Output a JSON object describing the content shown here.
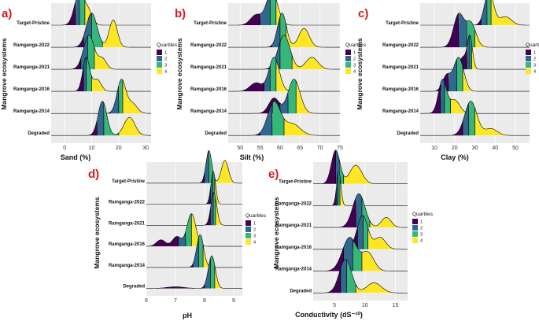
{
  "figure": {
    "y_axis_title": "Mangrove ecosystems",
    "legend_title": "Quartiles",
    "quartile_labels": [
      "1",
      "2",
      "3",
      "4"
    ],
    "quartile_colors": [
      "#440154",
      "#31688e",
      "#35b779",
      "#fde725"
    ],
    "panel_background": "#ebebeb",
    "gridline_color": "#ffffff",
    "panel_letter_color": "#d7191c"
  },
  "chart_data": [
    {
      "panel": "a)",
      "type": "ridgeline",
      "xlabel": "Sand (%)",
      "ylabel": "Mangrove ecosystems",
      "xlim": [
        -5,
        32
      ],
      "x_ticks": [
        0,
        10,
        20,
        30
      ],
      "categories": [
        "Target-Pristine",
        "Ramganga-2022",
        "Ramganga-2021",
        "Ramganga-2016",
        "Ramganga-2014",
        "Degraded"
      ],
      "series": [
        {
          "name": "Target-Pristine",
          "quartiles": [
            4,
            5.5,
            7.5,
            12
          ],
          "peaks": [
            {
              "x": 5.5,
              "h": 1.0,
              "s": 1.8
            },
            {
              "x": 9,
              "h": 0.35,
              "s": 1.5
            }
          ]
        },
        {
          "name": "Ramganga-2022",
          "quartiles": [
            7,
            10,
            14,
            18
          ],
          "peaks": [
            {
              "x": 10,
              "h": 0.75,
              "s": 2.0
            },
            {
              "x": 18,
              "h": 0.6,
              "s": 1.5
            }
          ]
        },
        {
          "name": "Ramganga-2021",
          "quartiles": [
            6,
            8.5,
            11,
            16
          ],
          "peaks": [
            {
              "x": 9,
              "h": 1.0,
              "s": 2.0
            },
            {
              "x": 14,
              "h": 0.3,
              "s": 1.5
            }
          ]
        },
        {
          "name": "Ramganga-2016",
          "quartiles": [
            7,
            8,
            10,
            13
          ],
          "peaks": [
            {
              "x": 8,
              "h": 1.0,
              "s": 1.3
            },
            {
              "x": 12,
              "h": 0.35,
              "s": 1.5
            }
          ]
        },
        {
          "name": "Ramganga-2014",
          "quartiles": [
            17,
            20,
            21.5,
            24
          ],
          "peaks": [
            {
              "x": 21,
              "h": 1.0,
              "s": 1.6
            },
            {
              "x": 25,
              "h": 0.3,
              "s": 1.8
            }
          ]
        },
        {
          "name": "Degraded",
          "quartiles": [
            12,
            14.5,
            20,
            24
          ],
          "peaks": [
            {
              "x": 14,
              "h": 0.85,
              "s": 1.6
            },
            {
              "x": 24,
              "h": 0.45,
              "s": 2.0
            }
          ]
        }
      ]
    },
    {
      "panel": "b)",
      "type": "ridgeline",
      "xlabel": "Silt (%)",
      "ylabel": "Mangrove ecosystems",
      "xlim": [
        47,
        75
      ],
      "x_ticks": [
        50,
        55,
        60,
        65,
        70,
        75
      ],
      "categories": [
        "Target-Pristine",
        "Ramganga-2022",
        "Ramganga-2021",
        "Ramganga-2016",
        "Ramganga-2014",
        "Degraded"
      ],
      "series": [
        {
          "name": "Target-Pristine",
          "quartiles": [
            55,
            57.5,
            59,
            61
          ],
          "peaks": [
            {
              "x": 58,
              "h": 1.0,
              "s": 1.4
            },
            {
              "x": 54,
              "h": 0.3,
              "s": 1.4
            }
          ]
        },
        {
          "name": "Ramganga-2022",
          "quartiles": [
            58,
            60,
            61.5,
            64
          ],
          "peaks": [
            {
              "x": 60.5,
              "h": 1.0,
              "s": 1.1
            },
            {
              "x": 66,
              "h": 0.55,
              "s": 1.3
            }
          ]
        },
        {
          "name": "Ramganga-2021",
          "quartiles": [
            57,
            60,
            63,
            66
          ],
          "peaks": [
            {
              "x": 61,
              "h": 1.0,
              "s": 1.5
            },
            {
              "x": 68,
              "h": 0.35,
              "s": 1.5
            }
          ]
        },
        {
          "name": "Ramganga-2016",
          "quartiles": [
            56,
            57.5,
            59,
            61
          ],
          "peaks": [
            {
              "x": 58.5,
              "h": 1.0,
              "s": 1.3
            },
            {
              "x": 54,
              "h": 0.25,
              "s": 1.5
            }
          ]
        },
        {
          "name": "Ramganga-2014",
          "quartiles": [
            60,
            62,
            64,
            66
          ],
          "peaks": [
            {
              "x": 63.5,
              "h": 1.0,
              "s": 1.5
            },
            {
              "x": 58.5,
              "h": 0.45,
              "s": 1.3
            }
          ]
        },
        {
          "name": "Degraded",
          "quartiles": [
            55,
            58,
            61,
            65
          ],
          "peaks": [
            {
              "x": 58.5,
              "h": 0.85,
              "s": 1.6
            },
            {
              "x": 63,
              "h": 0.3,
              "s": 2.0
            }
          ]
        }
      ]
    },
    {
      "panel": "c)",
      "type": "ridgeline",
      "xlabel": "Clay (%)",
      "ylabel": "Mangrove ecosystems",
      "xlim": [
        3,
        57
      ],
      "x_ticks": [
        10,
        20,
        30,
        40,
        50
      ],
      "categories": [
        "Target-Pristine",
        "Ramganga-2022",
        "Ramganga-2021",
        "Ramganga-2016",
        "Ramganga-2014",
        "Degraded"
      ],
      "series": [
        {
          "name": "Target-Pristine",
          "quartiles": [
            33,
            36,
            38,
            43
          ],
          "peaks": [
            {
              "x": 37,
              "h": 1.0,
              "s": 2.2
            },
            {
              "x": 45,
              "h": 0.25,
              "s": 3.0
            }
          ]
        },
        {
          "name": "Ramganga-2022",
          "quartiles": [
            22,
            26,
            30,
            38
          ],
          "peaks": [
            {
              "x": 22,
              "h": 0.75,
              "s": 2.5
            },
            {
              "x": 28,
              "h": 0.55,
              "s": 2.5
            }
          ]
        },
        {
          "name": "Ramganga-2021",
          "quartiles": [
            26,
            27.5,
            28.5,
            31
          ],
          "peaks": [
            {
              "x": 27.5,
              "h": 1.0,
              "s": 1.3
            },
            {
              "x": 24,
              "h": 0.35,
              "s": 1.5
            }
          ]
        },
        {
          "name": "Ramganga-2016",
          "quartiles": [
            17,
            21,
            24,
            30
          ],
          "peaks": [
            {
              "x": 22,
              "h": 1.0,
              "s": 2.5
            },
            {
              "x": 16,
              "h": 0.45,
              "s": 2.0
            }
          ]
        },
        {
          "name": "Ramganga-2014",
          "quartiles": [
            13,
            15,
            18,
            24
          ],
          "peaks": [
            {
              "x": 14,
              "h": 1.0,
              "s": 2.0
            },
            {
              "x": 20,
              "h": 0.4,
              "s": 2.5
            }
          ]
        },
        {
          "name": "Degraded",
          "quartiles": [
            24,
            27,
            30,
            34
          ],
          "peaks": [
            {
              "x": 28,
              "h": 1.0,
              "s": 3.0
            },
            {
              "x": 38,
              "h": 0.2,
              "s": 3.0
            }
          ]
        }
      ]
    },
    {
      "panel": "d)",
      "type": "ridgeline",
      "xlabel": "pH",
      "ylabel": "Mangrove ecosystems",
      "xlim": [
        6,
        9.3
      ],
      "x_ticks": [
        6,
        7,
        8,
        9
      ],
      "categories": [
        "Target-Pristine",
        "Ramganga-2022",
        "Ramganga-2021",
        "Ramganga-2016",
        "Ramganga-2014",
        "Degraded"
      ],
      "series": [
        {
          "name": "Target-Pristine",
          "quartiles": [
            8.0,
            8.15,
            8.3,
            8.55
          ],
          "peaks": [
            {
              "x": 8.15,
              "h": 1.0,
              "s": 0.1
            },
            {
              "x": 8.7,
              "h": 0.7,
              "s": 0.12
            }
          ]
        },
        {
          "name": "Ramganga-2022",
          "quartiles": [
            8.2,
            8.28,
            8.35,
            8.45
          ],
          "peaks": [
            {
              "x": 8.3,
              "h": 1.0,
              "s": 0.08
            }
          ]
        },
        {
          "name": "Ramganga-2021",
          "quartiles": [
            8.2,
            8.3,
            8.38,
            8.5
          ],
          "peaks": [
            {
              "x": 8.32,
              "h": 1.0,
              "s": 0.1
            }
          ]
        },
        {
          "name": "Ramganga-2016",
          "quartiles": [
            7.1,
            7.35,
            7.55,
            7.8
          ],
          "peaks": [
            {
              "x": 7.55,
              "h": 1.0,
              "s": 0.15
            },
            {
              "x": 6.5,
              "h": 0.2,
              "s": 0.15
            },
            {
              "x": 7.05,
              "h": 0.3,
              "s": 0.15
            }
          ]
        },
        {
          "name": "Ramganga-2014",
          "quartiles": [
            7.6,
            7.8,
            7.95,
            8.15
          ],
          "peaks": [
            {
              "x": 7.85,
              "h": 1.0,
              "s": 0.12
            }
          ]
        },
        {
          "name": "Degraded",
          "quartiles": [
            8.0,
            8.2,
            8.35,
            8.6
          ],
          "peaks": [
            {
              "x": 8.25,
              "h": 1.0,
              "s": 0.12
            },
            {
              "x": 7.0,
              "h": 0.05,
              "s": 0.3
            }
          ]
        }
      ]
    },
    {
      "panel": "e)",
      "type": "ridgeline",
      "xlabel": "Conductivity (dS⁻¹⁰)",
      "ylabel": "Mangrove ecosystems",
      "xlim": [
        1.5,
        17
      ],
      "x_ticks": [
        5,
        10,
        15
      ],
      "categories": [
        "Target-Pristine",
        "Ramganga-2022",
        "Ramganga-2021",
        "Ramganga-2016",
        "Ramganga-2014",
        "Degraded"
      ],
      "series": [
        {
          "name": "Target-Pristine",
          "quartiles": [
            5.2,
            5.8,
            6.5,
            8.8
          ],
          "peaks": [
            {
              "x": 5.2,
              "h": 1.0,
              "s": 0.7
            },
            {
              "x": 8.5,
              "h": 0.55,
              "s": 1.0
            }
          ]
        },
        {
          "name": "Ramganga-2022",
          "quartiles": [
            5.3,
            5.6,
            5.9,
            6.3
          ],
          "peaks": [
            {
              "x": 5.7,
              "h": 1.0,
              "s": 0.35
            }
          ]
        },
        {
          "name": "Ramganga-2021",
          "quartiles": [
            8.5,
            9.5,
            10.8,
            12.5
          ],
          "peaks": [
            {
              "x": 9.0,
              "h": 1.0,
              "s": 1.0
            },
            {
              "x": 13.5,
              "h": 0.3,
              "s": 0.8
            }
          ]
        },
        {
          "name": "Ramganga-2016",
          "quartiles": [
            8.8,
            9.7,
            10.5,
            12.5
          ],
          "peaks": [
            {
              "x": 9.6,
              "h": 1.0,
              "s": 0.9
            },
            {
              "x": 12.5,
              "h": 0.35,
              "s": 0.9
            }
          ]
        },
        {
          "name": "Ramganga-2014",
          "quartiles": [
            6.5,
            8.0,
            9.5,
            11.5
          ],
          "peaks": [
            {
              "x": 7.5,
              "h": 0.85,
              "s": 1.2
            },
            {
              "x": 10.5,
              "h": 0.45,
              "s": 1.0
            }
          ]
        },
        {
          "name": "Degraded",
          "quartiles": [
            6.0,
            7.0,
            8.5,
            11.5
          ],
          "peaks": [
            {
              "x": 6.8,
              "h": 1.0,
              "s": 1.0
            },
            {
              "x": 11.5,
              "h": 0.3,
              "s": 1.2
            }
          ]
        }
      ]
    }
  ]
}
